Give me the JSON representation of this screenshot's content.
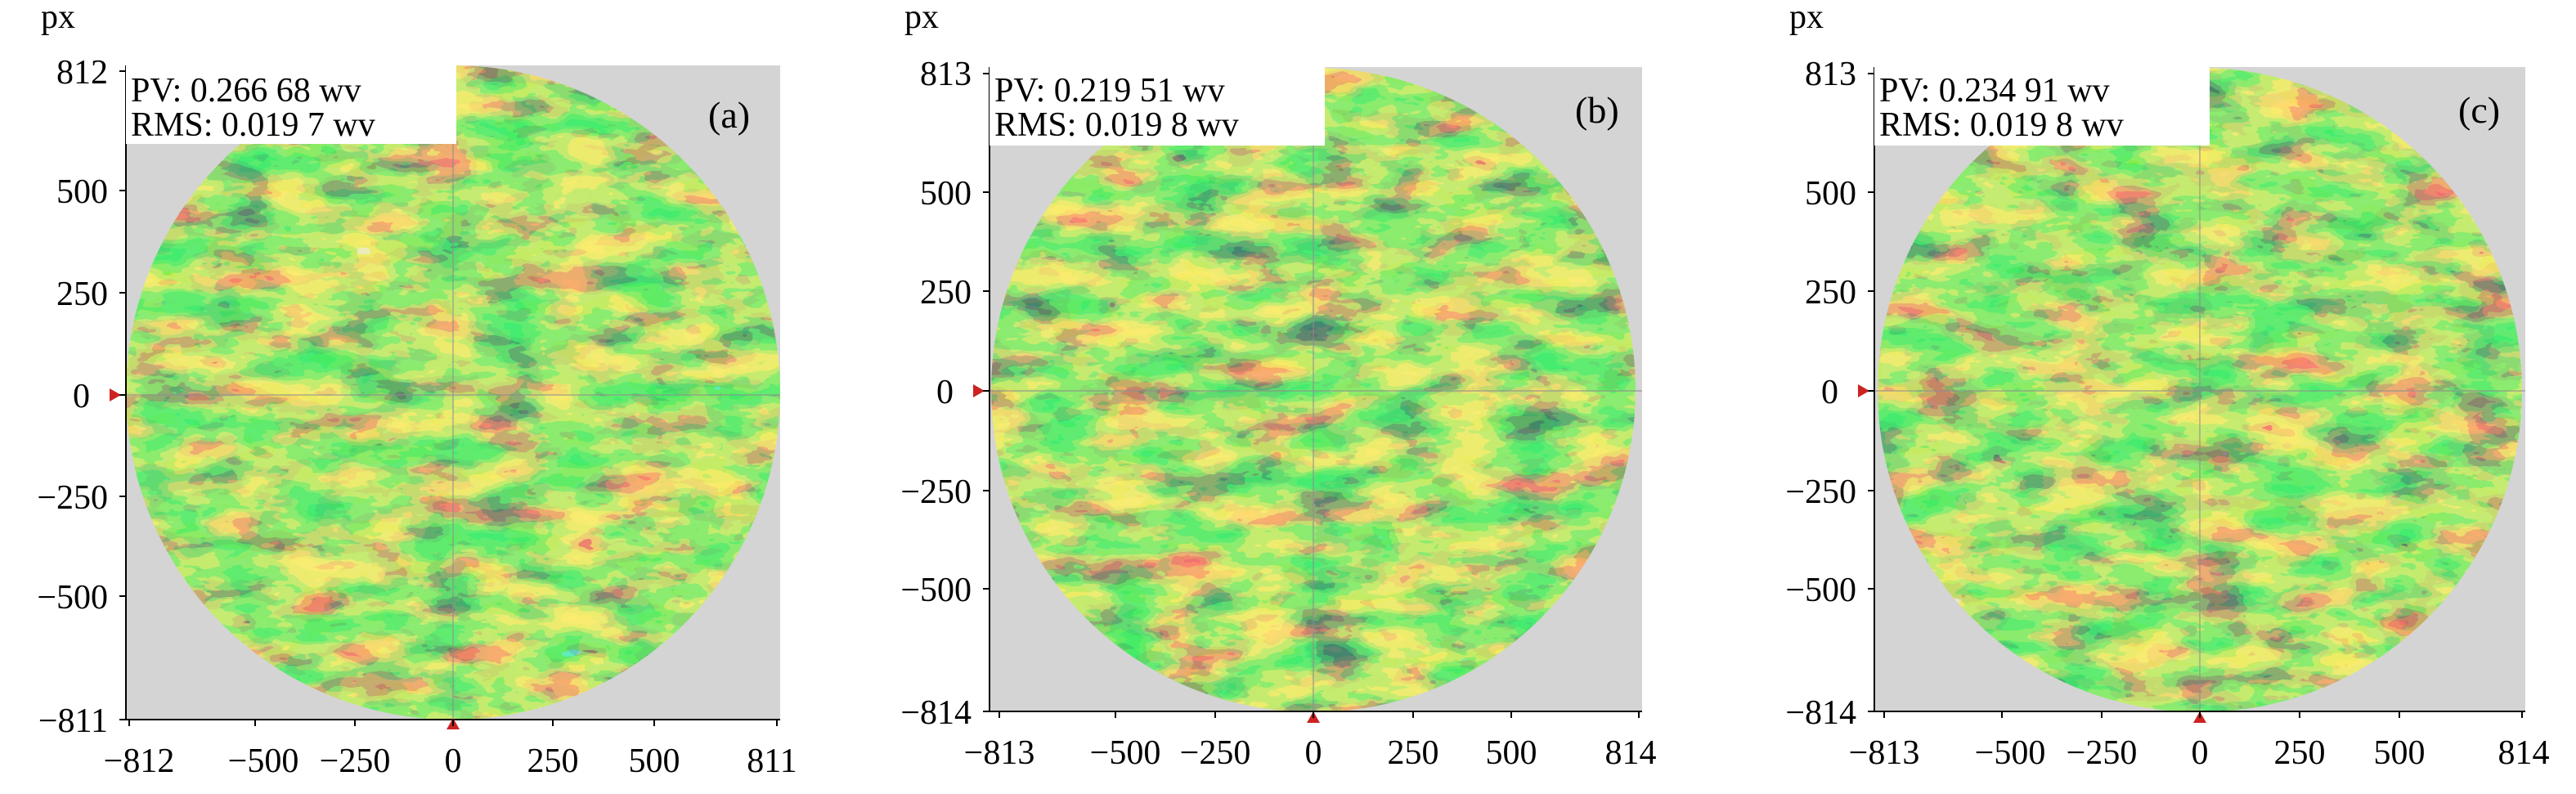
{
  "figure": {
    "unit_label": "px",
    "panels": [
      {
        "panel_label": "(a)",
        "pv_text": "PV: 0.266 68 wv",
        "rms_text": "RMS: 0.019 7 wv",
        "x_ticks": [
          "−812",
          "−500",
          "−250",
          "0",
          "250",
          "500",
          "811"
        ],
        "y_ticks": [
          "812",
          "500",
          "250",
          "0",
          "−250",
          "−500",
          "−811"
        ]
      },
      {
        "panel_label": "(b)",
        "pv_text": "PV: 0.219 51 wv",
        "rms_text": "RMS: 0.019 8 wv",
        "x_ticks": [
          "−813",
          "−500",
          "−250",
          "0",
          "250",
          "500",
          "814"
        ],
        "y_ticks": [
          "813",
          "500",
          "250",
          "0",
          "−250",
          "−500",
          "−814"
        ]
      },
      {
        "panel_label": "(c)",
        "pv_text": "PV: 0.234 91 wv",
        "rms_text": "RMS: 0.019 8 wv",
        "x_ticks": [
          "−813",
          "−500",
          "−250",
          "0",
          "250",
          "500",
          "814"
        ],
        "y_ticks": [
          "813",
          "500",
          "250",
          "0",
          "−250",
          "−500",
          "−814"
        ]
      }
    ],
    "colors": {
      "background": "#d4d4d4",
      "map_colors": [
        "#1c2c7e",
        "#0f3d23",
        "#1f6b22",
        "#43b52b",
        "#8fd42a",
        "#d8d72a",
        "#f0a120",
        "#ff3b12"
      ]
    }
  }
}
